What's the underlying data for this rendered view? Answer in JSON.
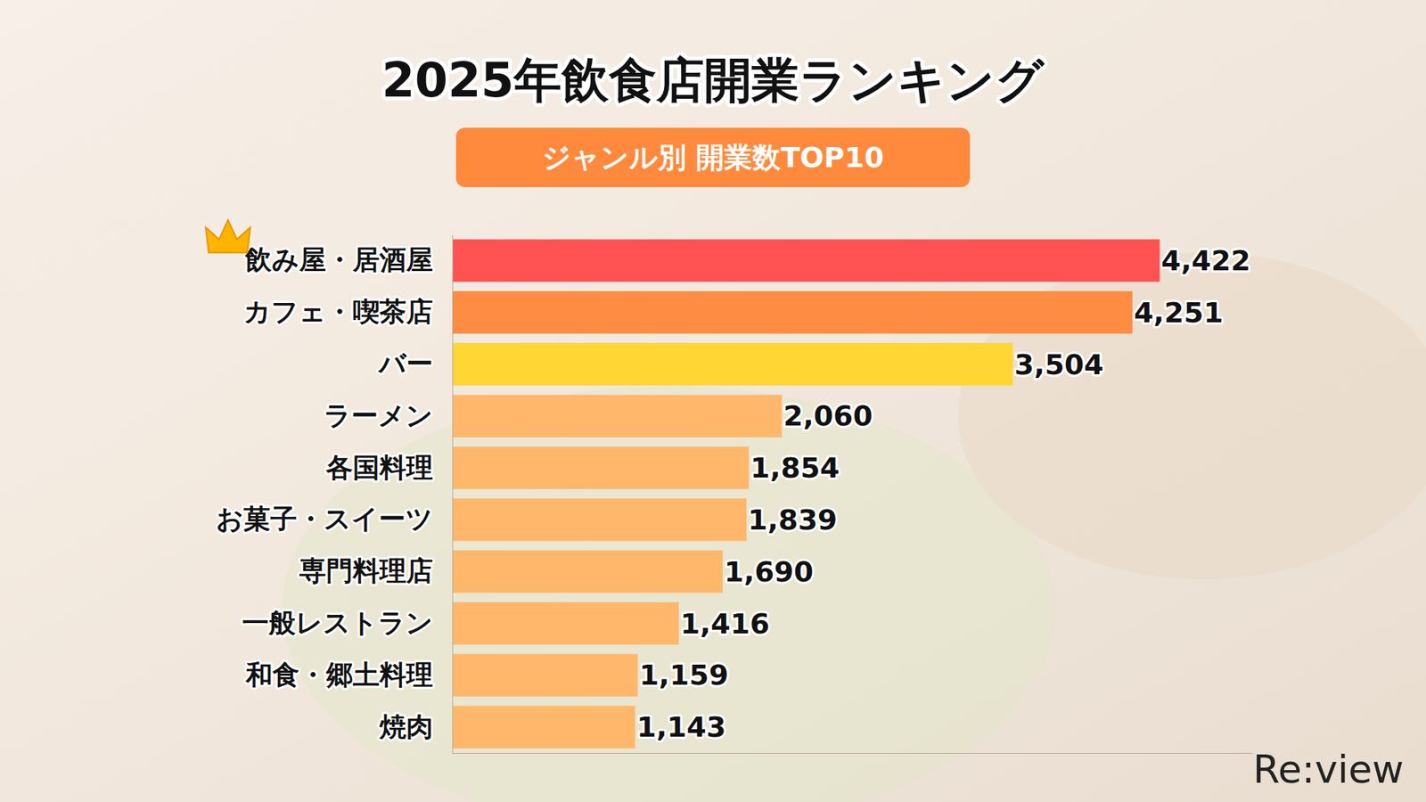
{
  "chart_data": {
    "type": "bar",
    "orientation": "horizontal",
    "title": "2025年飲食店開業ランキング",
    "subtitle": "ジャンル別 開業数TOP10",
    "categories": [
      "飲み屋・居酒屋",
      "カフェ・喫茶店",
      "バー",
      "ラーメン",
      "各国料理",
      "お菓子・スイーツ",
      "専門料理店",
      "一般レストラン",
      "和食・郷土料理",
      "焼肉"
    ],
    "values": [
      4422,
      4251,
      3504,
      2060,
      1854,
      1839,
      1690,
      1416,
      1159,
      1143
    ],
    "value_labels": [
      "4,422",
      "4,251",
      "3,504",
      "2,060",
      "1,854",
      "1,839",
      "1,690",
      "1,416",
      "1,159",
      "1,143"
    ],
    "colors": [
      "#ff5252",
      "#ff8c42",
      "#ffd633",
      "#ffb86b",
      "#ffb86b",
      "#ffb86b",
      "#ffb86b",
      "#ffb86b",
      "#ffb86b",
      "#ffb86b"
    ],
    "xlim": [
      0,
      5000
    ],
    "data_labels": true,
    "tick_labels": "y",
    "grid": false,
    "annotations": [
      "Re:view"
    ]
  }
}
